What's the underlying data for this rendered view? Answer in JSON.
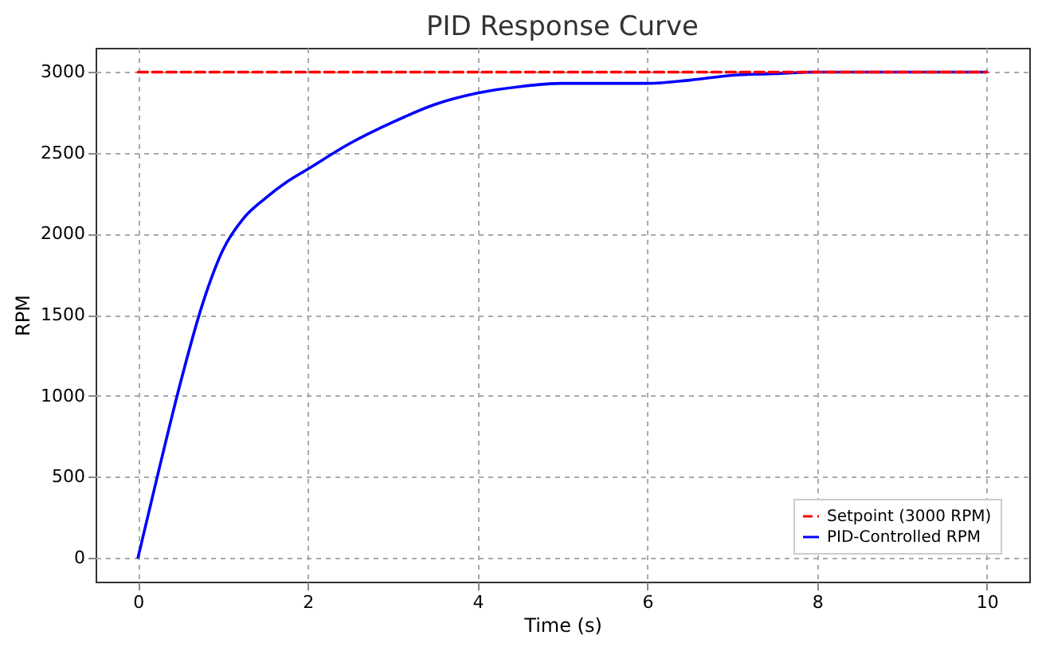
{
  "chart_data": {
    "type": "line",
    "title": "PID Response Curve",
    "xlabel": "Time (s)",
    "ylabel": "RPM",
    "xlim": [
      -0.5,
      10.5
    ],
    "xticks": [
      0,
      2,
      4,
      6,
      8,
      10
    ],
    "ylim": [
      -150,
      3150
    ],
    "yticks": [
      0,
      500,
      1000,
      1500,
      2000,
      2500,
      3000
    ],
    "grid": true,
    "legend": "bottom right",
    "series": [
      {
        "name": "Setpoint (3000 RPM)",
        "color": "#ff0000",
        "line_style": "dashed",
        "x": [
          0,
          10
        ],
        "values": [
          3000,
          3000
        ]
      },
      {
        "name": "PID-Controlled RPM",
        "color": "#0000ff",
        "line_style": "solid",
        "x": [
          0,
          0.25,
          0.5,
          0.75,
          1.0,
          1.25,
          1.5,
          1.75,
          2,
          2.5,
          3,
          3.5,
          4,
          4.5,
          5,
          5.5,
          6,
          6.5,
          7,
          7.5,
          8,
          9,
          10
        ],
        "values": [
          0,
          550,
          1080,
          1550,
          1900,
          2100,
          2220,
          2320,
          2400,
          2560,
          2690,
          2800,
          2870,
          2910,
          2930,
          2930,
          2930,
          2950,
          2980,
          2990,
          3000,
          3000,
          3000
        ]
      }
    ]
  }
}
